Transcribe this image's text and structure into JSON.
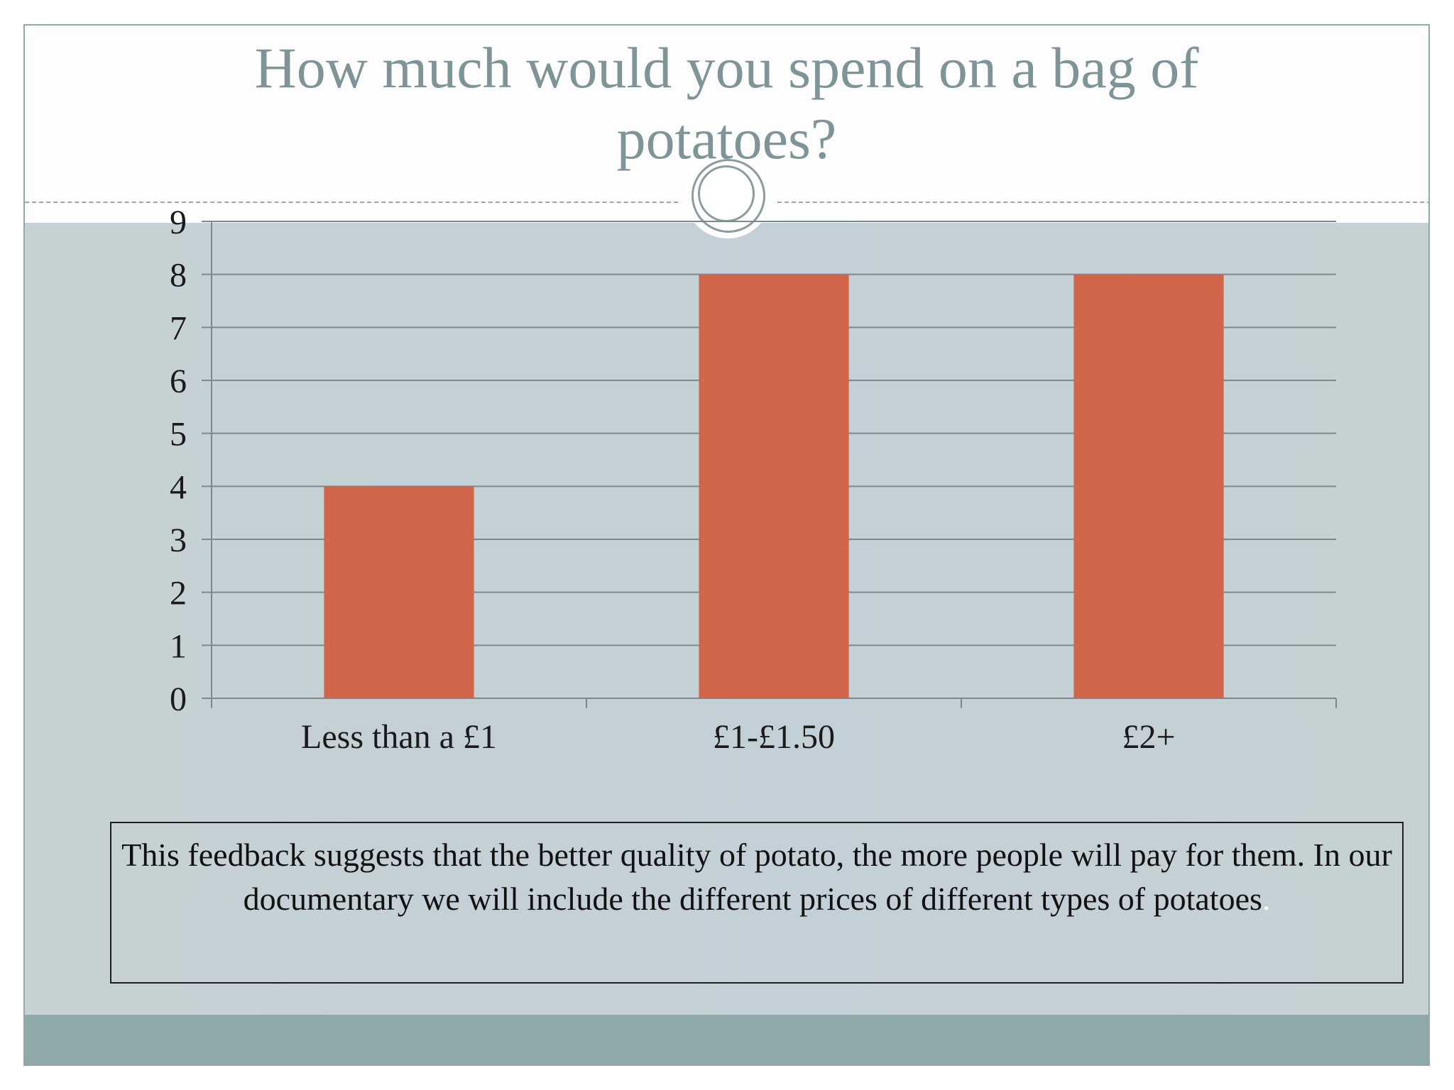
{
  "slide": {
    "title_lines": [
      "How much would you spend on a bag of",
      "potatoes?"
    ],
    "note": "This feedback suggests that the better quality of potato, the more people will pay for them. In our documentary we will include the different prices of different types of potatoes",
    "note_trailing": "."
  },
  "colors": {
    "bar": "#d0654b",
    "title": "#7f9496",
    "accent": "#8fa9ab",
    "grid": "#7c8a8c"
  },
  "chart_data": {
    "type": "bar",
    "categories": [
      "Less than a £1",
      "£1-£1.50",
      "£2+"
    ],
    "values": [
      4,
      8,
      8
    ],
    "ylim": [
      0,
      9
    ],
    "yticks": [
      0,
      1,
      2,
      3,
      4,
      5,
      6,
      7,
      8,
      9
    ],
    "grid": true,
    "legend": "none"
  }
}
